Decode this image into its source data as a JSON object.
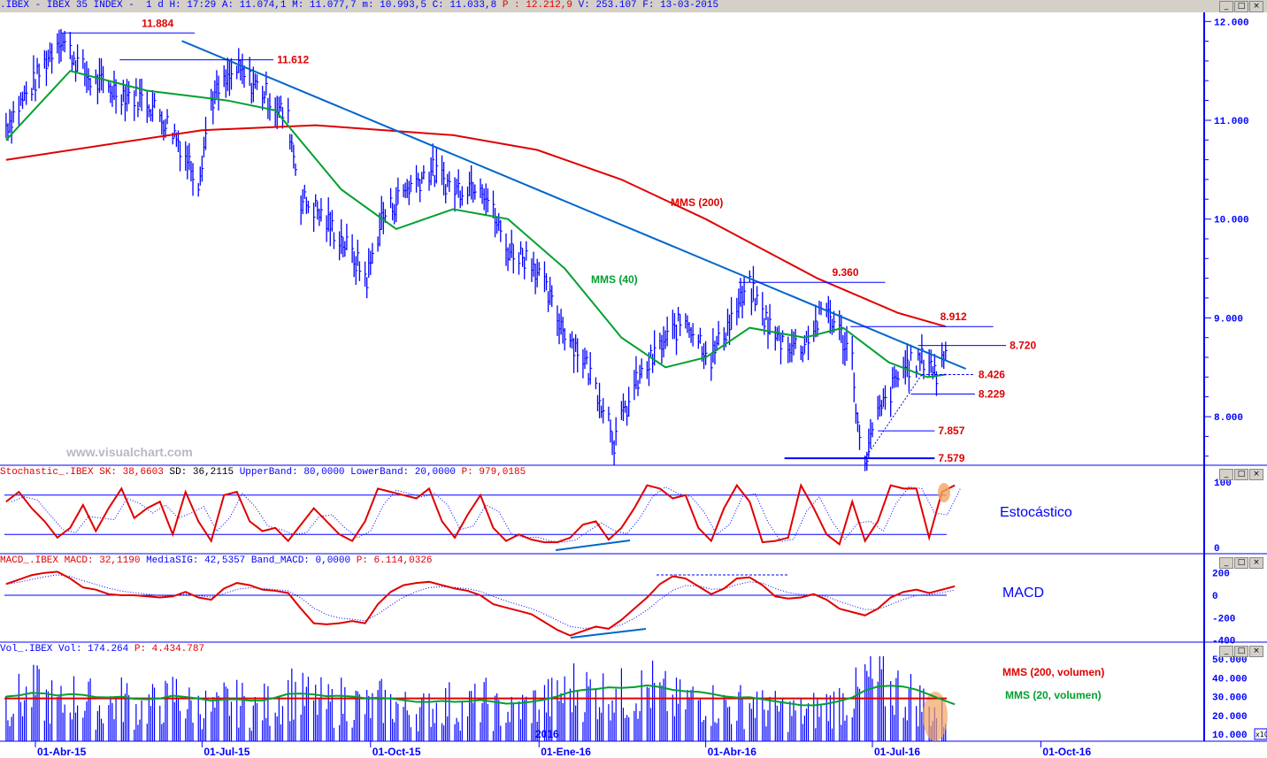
{
  "header": {
    "symbol": ".IBEX - IBEX 35 INDEX -",
    "period": "1 d",
    "h": "H: 17:29",
    "a": "A: 11.074,1",
    "m": "M: 11.077,7",
    "mn": "m: 10.993,5",
    "c": "C: 11.033,8",
    "p": "P : 12.212,9",
    "v": "V: 253.107",
    "f": "F: 13-03-2015"
  },
  "stoch_header": {
    "name": "Stochastic_.IBEX",
    "sk": "SK: 38,6603",
    "sd": "SD: 36,2115",
    "upper": "UpperBand: 80,0000",
    "lower": "LowerBand: 20,0000",
    "p": "P: 979,0185"
  },
  "macd_header": {
    "name": "MACD_.IBEX",
    "macd": "MACD: 32,1190",
    "sig": "MediaSIG: 42,5357",
    "band": "Band_MACD: 0,0000",
    "p": "P: 6.114,0326"
  },
  "vol_header": {
    "name": "Vol_.IBEX",
    "vol": "Vol: 174.264",
    "p": "P: 4.434.787"
  },
  "watermark": "www.visualchart.com",
  "labels": {
    "mms200": "MMS (200)",
    "mms40": "MMS (40)",
    "estocastico": "Estocástico",
    "macd": "MACD",
    "mms200vol": "MMS (200, volumen)",
    "mms20vol": "MMS (20, volumen)",
    "year": "2016",
    "x10": "x10"
  },
  "window_buttons": [
    "_",
    "□",
    "×"
  ],
  "colors": {
    "price": "#0000ff",
    "mms40": "#00a030",
    "mms200": "#e00000",
    "trend": "#0066cc",
    "level_text": "#e00000",
    "highlight": "#f4a460"
  },
  "chart_data": {
    "type": "line",
    "price_axis": {
      "ticks": [
        "12.000",
        "11.000",
        "10.000",
        "9.000",
        "8.000"
      ],
      "values": [
        12000,
        11000,
        10000,
        9000,
        8000
      ]
    },
    "date_ticks": [
      {
        "label": "01-Abr-15",
        "date": "2015-04-01"
      },
      {
        "label": "01-Jul-15",
        "date": "2015-07-01"
      },
      {
        "label": "01-Oct-15",
        "date": "2015-10-01"
      },
      {
        "label": "01-Ene-16",
        "date": "2016-01-01"
      },
      {
        "label": "01-Abr-16",
        "date": "2016-04-01"
      },
      {
        "label": "01-Jul-16",
        "date": "2016-07-01"
      },
      {
        "label": "01-Oct-16",
        "date": "2016-10-01"
      }
    ],
    "price": [
      [
        "2015-03-16",
        10950
      ],
      [
        "2015-04-01",
        11400
      ],
      [
        "2015-04-14",
        11850
      ],
      [
        "2015-05-01",
        11400
      ],
      [
        "2015-05-15",
        11300
      ],
      [
        "2015-06-01",
        11200
      ],
      [
        "2015-06-15",
        10900
      ],
      [
        "2015-06-29",
        10400
      ],
      [
        "2015-07-06",
        11200
      ],
      [
        "2015-07-20",
        11500
      ],
      [
        "2015-08-03",
        11300
      ],
      [
        "2015-08-17",
        11000
      ],
      [
        "2015-08-24",
        10200
      ],
      [
        "2015-09-01",
        10100
      ],
      [
        "2015-09-15",
        9800
      ],
      [
        "2015-09-29",
        9400
      ],
      [
        "2015-10-07",
        10000
      ],
      [
        "2015-10-20",
        10300
      ],
      [
        "2015-11-03",
        10500
      ],
      [
        "2015-11-16",
        10300
      ],
      [
        "2015-11-30",
        10400
      ],
      [
        "2015-12-14",
        9700
      ],
      [
        "2015-12-28",
        9600
      ],
      [
        "2016-01-11",
        9000
      ],
      [
        "2016-01-25",
        8600
      ],
      [
        "2016-02-08",
        8000
      ],
      [
        "2016-02-11",
        7750
      ],
      [
        "2016-02-22",
        8300
      ],
      [
        "2016-03-07",
        8700
      ],
      [
        "2016-03-21",
        9000
      ],
      [
        "2016-04-04",
        8600
      ],
      [
        "2016-04-18",
        9100
      ],
      [
        "2016-04-25",
        9300
      ],
      [
        "2016-05-09",
        8800
      ],
      [
        "2016-05-23",
        8700
      ],
      [
        "2016-06-06",
        9100
      ],
      [
        "2016-06-20",
        8600
      ],
      [
        "2016-06-24",
        7700
      ],
      [
        "2016-06-27",
        7579
      ],
      [
        "2016-07-04",
        8000
      ],
      [
        "2016-07-18",
        8500
      ],
      [
        "2016-08-01",
        8600
      ],
      [
        "2016-08-05",
        8400
      ],
      [
        "2016-08-10",
        8700
      ]
    ],
    "mms40": [
      [
        "2015-03-16",
        10800
      ],
      [
        "2015-04-20",
        11500
      ],
      [
        "2015-06-01",
        11300
      ],
      [
        "2015-07-15",
        11200
      ],
      [
        "2015-08-10",
        11100
      ],
      [
        "2015-09-15",
        10300
      ],
      [
        "2015-10-15",
        9900
      ],
      [
        "2015-11-15",
        10100
      ],
      [
        "2015-12-15",
        10000
      ],
      [
        "2016-01-15",
        9500
      ],
      [
        "2016-02-15",
        8800
      ],
      [
        "2016-03-10",
        8500
      ],
      [
        "2016-04-01",
        8600
      ],
      [
        "2016-04-25",
        8900
      ],
      [
        "2016-05-25",
        8800
      ],
      [
        "2016-06-15",
        8900
      ],
      [
        "2016-07-10",
        8550
      ],
      [
        "2016-07-31",
        8400
      ],
      [
        "2016-08-10",
        8426
      ]
    ],
    "mms200": [
      [
        "2015-03-16",
        10600
      ],
      [
        "2015-07-01",
        10900
      ],
      [
        "2015-09-01",
        10950
      ],
      [
        "2015-11-15",
        10850
      ],
      [
        "2015-12-31",
        10700
      ],
      [
        "2016-02-15",
        10400
      ],
      [
        "2016-04-01",
        10000
      ],
      [
        "2016-06-01",
        9400
      ],
      [
        "2016-07-15",
        9050
      ],
      [
        "2016-08-10",
        8912
      ]
    ],
    "trendline": [
      [
        "2015-06-20",
        11803
      ],
      [
        "2016-08-21",
        8484
      ]
    ],
    "levels": [
      {
        "value": 11884,
        "label": "11.884",
        "from": "2015-04-15",
        "to": "2015-06-27",
        "pos": "above"
      },
      {
        "value": 11612,
        "label": "11.612",
        "from": "2015-05-17",
        "to": "2015-08-09",
        "pos": "right"
      },
      {
        "value": 9360,
        "label": "9.360",
        "from": "2016-04-19",
        "to": "2016-07-08",
        "pos": "above"
      },
      {
        "value": 8912,
        "label": "8.912",
        "from": "2016-06-19",
        "to": "2016-09-05",
        "pos": "above"
      },
      {
        "value": 8720,
        "label": "8.720",
        "from": "2016-07-26",
        "to": "2016-09-12",
        "pos": "right"
      },
      {
        "value": 8426,
        "label": "8.426",
        "from": "2016-07-28",
        "to": "2016-08-26",
        "pos": "right",
        "dashed": true
      },
      {
        "value": 8229,
        "label": "8.229",
        "from": "2016-07-22",
        "to": "2016-08-26",
        "pos": "right"
      },
      {
        "value": 7857,
        "label": "7.857",
        "from": "2016-07-04",
        "to": "2016-08-04",
        "pos": "right"
      },
      {
        "value": 7579,
        "label": "7.579",
        "from": "2016-05-14",
        "to": "2016-08-04",
        "pos": "right",
        "thick": true
      }
    ],
    "weekly_start": "2015-03-16",
    "stochastic": {
      "axis": [
        "100",
        "0"
      ],
      "upper": 80,
      "lower": 20,
      "values": [
        70,
        85,
        60,
        40,
        15,
        30,
        65,
        25,
        60,
        90,
        45,
        60,
        70,
        20,
        85,
        40,
        10,
        80,
        85,
        40,
        25,
        30,
        10,
        35,
        60,
        40,
        20,
        10,
        40,
        90,
        85,
        80,
        75,
        90,
        40,
        15,
        50,
        80,
        30,
        10,
        20,
        12,
        8,
        8,
        15,
        35,
        40,
        12,
        30,
        60,
        95,
        90,
        75,
        80,
        30,
        10,
        60,
        95,
        70,
        8,
        10,
        15,
        95,
        60,
        20,
        5,
        70,
        10,
        40,
        95,
        90,
        90,
        15,
        85,
        95
      ]
    },
    "macd": {
      "axis": [
        "200",
        "0",
        "-200",
        "-400"
      ],
      "values": [
        100,
        140,
        180,
        200,
        210,
        150,
        70,
        50,
        10,
        0,
        0,
        -10,
        -20,
        -10,
        30,
        -20,
        -40,
        60,
        110,
        90,
        50,
        40,
        20,
        -120,
        -250,
        -260,
        -250,
        -230,
        -250,
        -80,
        30,
        90,
        110,
        120,
        90,
        60,
        40,
        0,
        -80,
        -110,
        -140,
        -170,
        -240,
        -310,
        -360,
        -320,
        -280,
        -300,
        -220,
        -120,
        -20,
        100,
        170,
        150,
        80,
        10,
        60,
        150,
        160,
        90,
        -10,
        -30,
        -20,
        10,
        -40,
        -120,
        -150,
        -180,
        -120,
        -20,
        30,
        50,
        20,
        50,
        80
      ]
    },
    "volume": {
      "axis": [
        "50.000",
        "40.000",
        "30.000",
        "20.000",
        "10.000"
      ],
      "unit": "x10",
      "mms200": 29000,
      "values": [
        30000,
        32000,
        35000,
        31000,
        28000,
        33000,
        30000,
        27000,
        29000,
        31000,
        26000,
        28000,
        30000,
        34000,
        28000,
        27000,
        25000,
        30000,
        29000,
        26000,
        28000,
        33000,
        36000,
        32000,
        30000,
        28000,
        31000,
        29000,
        27000,
        30000,
        28000,
        26000,
        25000,
        27000,
        29000,
        26000,
        28000,
        30000,
        25000,
        24000,
        27000,
        29000,
        31000,
        34000,
        38000,
        36000,
        35000,
        37000,
        34000,
        36000,
        38000,
        33000,
        30000,
        31000,
        32000,
        29000,
        27000,
        28000,
        30000,
        26000,
        25000,
        24000,
        23000,
        25000,
        28000,
        31000,
        34000,
        42000,
        40000,
        37000,
        34000,
        30000,
        25000,
        22000,
        20000
      ]
    }
  }
}
